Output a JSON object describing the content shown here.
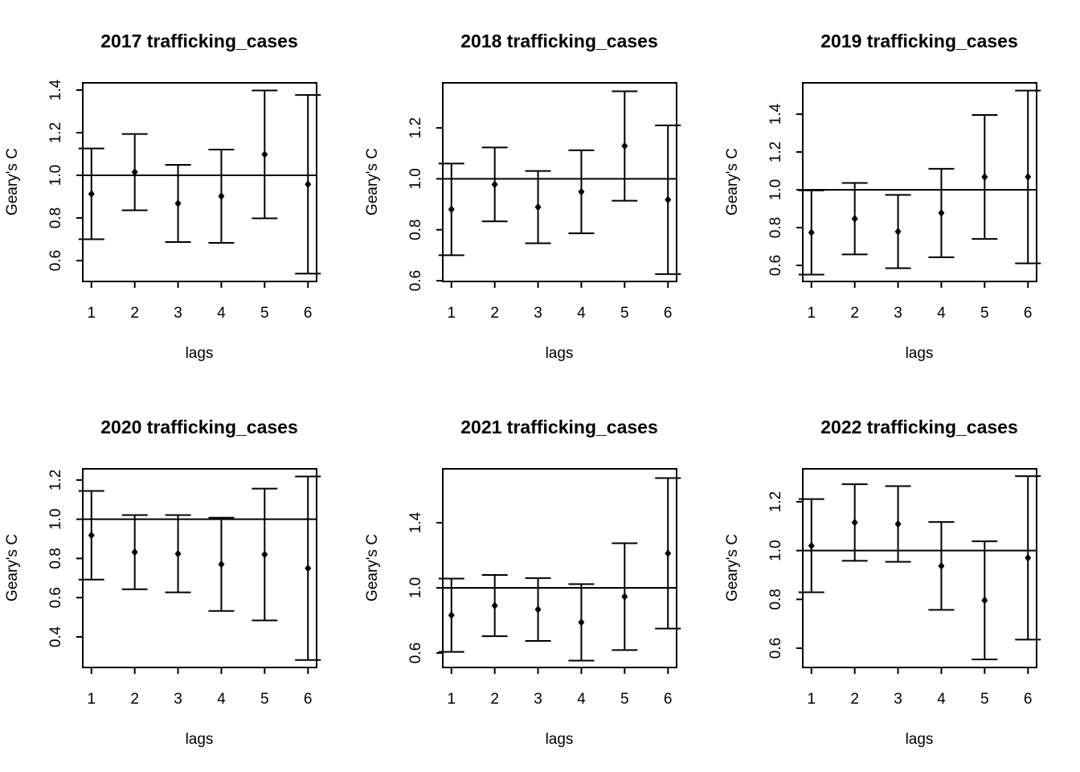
{
  "chart_data": [
    {
      "type": "errorbar",
      "title": "2017 trafficking_cases",
      "x_label": "lags",
      "y_label": "Geary's C",
      "x": [
        1,
        2,
        3,
        4,
        5,
        6
      ],
      "xlim": [
        0.8,
        6.2
      ],
      "xticks": [
        1,
        2,
        3,
        4,
        5,
        6
      ],
      "ylim": [
        0.502,
        1.434
      ],
      "yticks": [
        0.6,
        0.8,
        1.0,
        1.2,
        1.4
      ],
      "hline": 1.0,
      "series": [
        {
          "color": "#000000",
          "values": [
            0.913,
            1.015,
            0.868,
            0.902,
            1.098,
            0.958
          ],
          "errors": [
            0.213,
            0.179,
            0.181,
            0.219,
            0.3,
            0.419
          ]
        }
      ]
    },
    {
      "type": "errorbar",
      "title": "2018 trafficking_cases",
      "x_label": "lags",
      "y_label": "Geary's C",
      "x": [
        1,
        2,
        3,
        4,
        5,
        6
      ],
      "xlim": [
        0.8,
        6.2
      ],
      "xticks": [
        1,
        2,
        3,
        4,
        5,
        6
      ],
      "ylim": [
        0.597,
        1.377
      ],
      "yticks": [
        0.6,
        0.8,
        1.0,
        1.2
      ],
      "hline": 1.0,
      "series": [
        {
          "color": "#000000",
          "values": [
            0.88,
            0.978,
            0.889,
            0.949,
            1.129,
            0.918
          ],
          "errors": [
            0.18,
            0.145,
            0.142,
            0.163,
            0.215,
            0.292
          ]
        }
      ]
    },
    {
      "type": "errorbar",
      "title": "2019 trafficking_cases",
      "x_label": "lags",
      "y_label": "Geary's C",
      "x": [
        1,
        2,
        3,
        4,
        5,
        6
      ],
      "xlim": [
        0.8,
        6.2
      ],
      "xticks": [
        1,
        2,
        3,
        4,
        5,
        6
      ],
      "ylim": [
        0.515,
        1.566
      ],
      "yticks": [
        0.6,
        0.8,
        1.0,
        1.2,
        1.4
      ],
      "hline": 1.0,
      "series": [
        {
          "color": "#000000",
          "values": [
            0.774,
            0.847,
            0.779,
            0.877,
            1.068,
            1.068
          ],
          "errors": [
            0.223,
            0.189,
            0.194,
            0.234,
            0.328,
            0.457
          ]
        }
      ]
    },
    {
      "type": "errorbar",
      "title": "2020 trafficking_cases",
      "x_label": "lags",
      "y_label": "Geary's C",
      "x": [
        1,
        2,
        3,
        4,
        5,
        6
      ],
      "xlim": [
        0.8,
        6.2
      ],
      "xticks": [
        1,
        2,
        3,
        4,
        5,
        6
      ],
      "ylim": [
        0.244,
        1.257
      ],
      "yticks": [
        0.4,
        0.6,
        0.8,
        1.0,
        1.2
      ],
      "hline": 1.0,
      "series": [
        {
          "color": "#000000",
          "values": [
            0.918,
            0.832,
            0.824,
            0.77,
            0.82,
            0.75
          ],
          "errors": [
            0.226,
            0.189,
            0.197,
            0.238,
            0.336,
            0.468
          ]
        }
      ]
    },
    {
      "type": "errorbar",
      "title": "2021 trafficking_cases",
      "x_label": "lags",
      "y_label": "Geary's C",
      "x": [
        1,
        2,
        3,
        4,
        5,
        6
      ],
      "xlim": [
        0.8,
        6.2
      ],
      "xticks": [
        1,
        2,
        3,
        4,
        5,
        6
      ],
      "ylim": [
        0.511,
        1.731
      ],
      "yticks": [
        0.6,
        1.0,
        1.4
      ],
      "hline": 1.0,
      "series": [
        {
          "color": "#000000",
          "values": [
            0.832,
            0.891,
            0.867,
            0.788,
            0.946,
            1.212
          ],
          "errors": [
            0.225,
            0.188,
            0.193,
            0.235,
            0.328,
            0.462
          ]
        }
      ]
    },
    {
      "type": "errorbar",
      "title": "2022 trafficking_cases",
      "x_label": "lags",
      "y_label": "Geary's C",
      "x": [
        1,
        2,
        3,
        4,
        5,
        6
      ],
      "xlim": [
        0.8,
        6.2
      ],
      "xticks": [
        1,
        2,
        3,
        4,
        5,
        6
      ],
      "ylim": [
        0.521,
        1.335
      ],
      "yticks": [
        0.6,
        0.8,
        1.0,
        1.2
      ],
      "hline": 1.0,
      "series": [
        {
          "color": "#000000",
          "values": [
            1.02,
            1.115,
            1.109,
            0.937,
            0.796,
            0.97
          ],
          "errors": [
            0.191,
            0.157,
            0.155,
            0.18,
            0.242,
            0.335
          ]
        }
      ]
    }
  ]
}
